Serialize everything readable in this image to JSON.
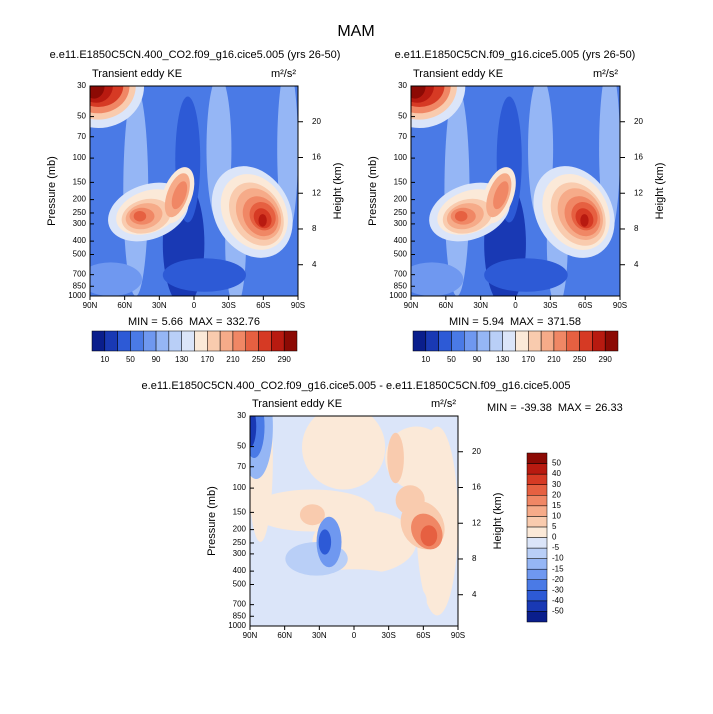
{
  "title": "MAM",
  "chart_data": [
    {
      "type": "contour",
      "title": "e.e11.E1850C5CN.400_CO2.f09_g16.cice5.005 (yrs 26-50)",
      "left_string": "Transient eddy KE",
      "right_string": "m²/s²",
      "ylabel": "Pressure (mb)",
      "y2label": "Height (km)",
      "yscale": "log",
      "ylim": [
        1000,
        30
      ],
      "yticks": [
        30,
        50,
        70,
        100,
        150,
        200,
        250,
        300,
        400,
        500,
        700,
        850,
        1000
      ],
      "y2lim": [
        0.5,
        24
      ],
      "y2ticks": [
        4,
        8,
        12,
        16,
        20
      ],
      "xlim": [
        90,
        -90
      ],
      "xticks": [
        {
          "value": 90,
          "label": "90N"
        },
        {
          "value": 60,
          "label": "60N"
        },
        {
          "value": 30,
          "label": "30N"
        },
        0,
        {
          "value": -30,
          "label": "30S"
        },
        {
          "value": -60,
          "label": "60S"
        },
        {
          "value": -90,
          "label": "90S"
        }
      ],
      "min_label": "MIN =",
      "min": 5.66,
      "max_label": "MAX =",
      "max": 332.76,
      "colorbar": {
        "orientation": "horizontal",
        "label_stride": 2,
        "levels": [
          10,
          30,
          50,
          70,
          90,
          110,
          130,
          150,
          170,
          190,
          210,
          230,
          250,
          270,
          290
        ],
        "colors": [
          "#0a1e8c",
          "#1939b4",
          "#2d5ad6",
          "#4a7ae6",
          "#6f98f0",
          "#95b6f5",
          "#b9cff7",
          "#dbe5f9",
          "#fbe9d8",
          "#f9cbae",
          "#f6ab89",
          "#f08765",
          "#e66041",
          "#d63a24",
          "#b81a10",
          "#8c0a04"
        ]
      }
    },
    {
      "type": "contour",
      "title": "e.e11.E1850C5CN.f09_g16.cice5.005 (yrs 26-50)",
      "left_string": "Transient eddy KE",
      "right_string": "m²/s²",
      "ylabel": "Pressure (mb)",
      "y2label": "Height (km)",
      "yscale": "log",
      "ylim": [
        1000,
        30
      ],
      "yticks": [
        30,
        50,
        70,
        100,
        150,
        200,
        250,
        300,
        400,
        500,
        700,
        850,
        1000
      ],
      "y2lim": [
        0.5,
        24
      ],
      "y2ticks": [
        4,
        8,
        12,
        16,
        20
      ],
      "xlim": [
        90,
        -90
      ],
      "xticks": [
        {
          "value": 90,
          "label": "90N"
        },
        {
          "value": 60,
          "label": "60N"
        },
        {
          "value": 30,
          "label": "30N"
        },
        0,
        {
          "value": -30,
          "label": "30S"
        },
        {
          "value": -60,
          "label": "60S"
        },
        {
          "value": -90,
          "label": "90S"
        }
      ],
      "min_label": "MIN =",
      "min": 5.94,
      "max_label": "MAX =",
      "max": 371.58,
      "colorbar": {
        "orientation": "horizontal",
        "label_stride": 2,
        "levels": [
          10,
          30,
          50,
          70,
          90,
          110,
          130,
          150,
          170,
          190,
          210,
          230,
          250,
          270,
          290
        ],
        "colors": [
          "#0a1e8c",
          "#1939b4",
          "#2d5ad6",
          "#4a7ae6",
          "#6f98f0",
          "#95b6f5",
          "#b9cff7",
          "#dbe5f9",
          "#fbe9d8",
          "#f9cbae",
          "#f6ab89",
          "#f08765",
          "#e66041",
          "#d63a24",
          "#b81a10",
          "#8c0a04"
        ]
      }
    },
    {
      "type": "contour",
      "title": "e.e11.E1850C5CN.400_CO2.f09_g16.cice5.005 - e.e11.E1850C5CN.f09_g16.cice5.005",
      "left_string": "Transient eddy KE",
      "right_string": "m²/s²",
      "ylabel": "Pressure (mb)",
      "y2label": "Height (km)",
      "yscale": "log",
      "ylim": [
        1000,
        30
      ],
      "yticks": [
        30,
        50,
        70,
        100,
        150,
        200,
        250,
        300,
        400,
        500,
        700,
        850,
        1000
      ],
      "y2lim": [
        0.5,
        24
      ],
      "y2ticks": [
        4,
        8,
        12,
        16,
        20
      ],
      "xlim": [
        90,
        -90
      ],
      "xticks": [
        {
          "value": 90,
          "label": "90N"
        },
        {
          "value": 60,
          "label": "60N"
        },
        {
          "value": 30,
          "label": "30N"
        },
        0,
        {
          "value": -30,
          "label": "30S"
        },
        {
          "value": -60,
          "label": "60S"
        },
        {
          "value": -90,
          "label": "90S"
        }
      ],
      "min_label": "MIN =",
      "min": -39.38,
      "max_label": "MAX =",
      "max": 26.33,
      "colorbar": {
        "orientation": "vertical",
        "label_stride": 1,
        "levels": [
          -50,
          -40,
          -30,
          -20,
          -15,
          -10,
          -5,
          0,
          5,
          10,
          15,
          20,
          30,
          40,
          50
        ],
        "colors": [
          "#0a1e8c",
          "#1939b4",
          "#2d5ad6",
          "#4a7ae6",
          "#6f98f0",
          "#95b6f5",
          "#b9cff7",
          "#dbe5f9",
          "#fbe9d8",
          "#f9cbae",
          "#f6ab89",
          "#f08765",
          "#e66041",
          "#d63a24",
          "#b81a10",
          "#8c0a04"
        ]
      }
    }
  ]
}
